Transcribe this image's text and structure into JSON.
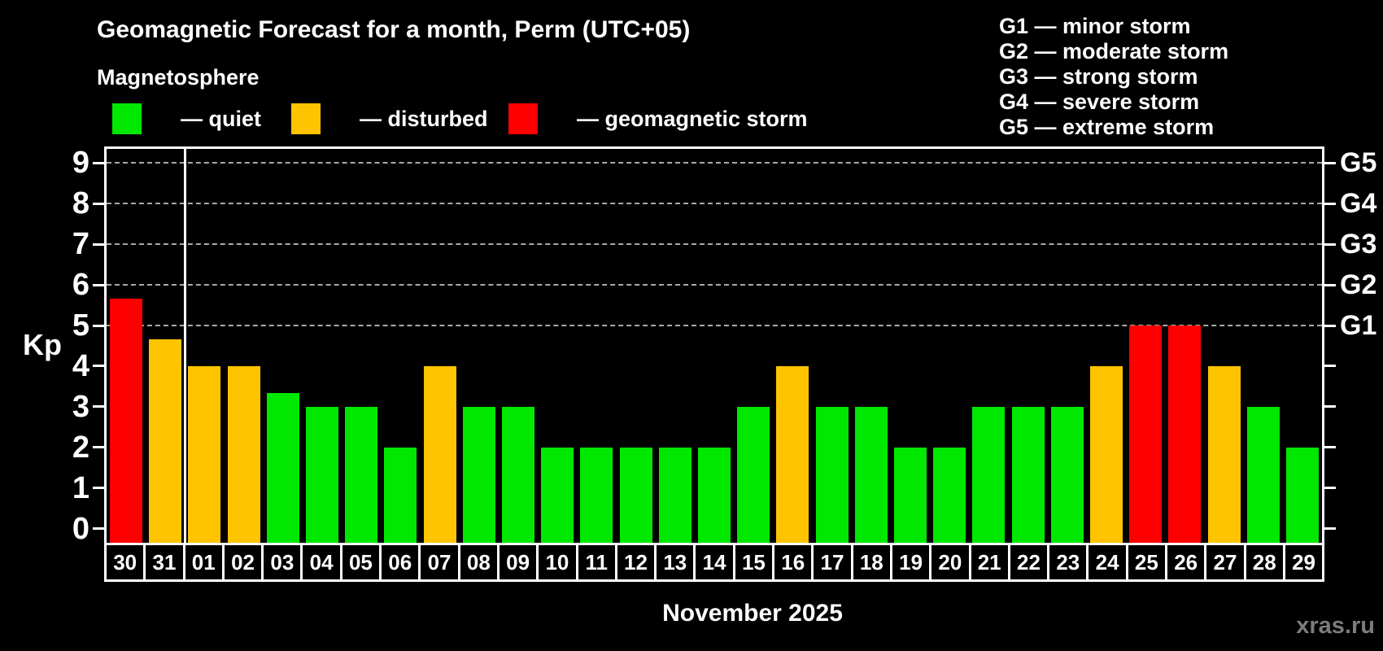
{
  "header": {
    "title": "Geomagnetic Forecast for a month, Perm (UTC+05)",
    "subtitle": "Magnetosphere"
  },
  "legend": {
    "items": [
      {
        "key": "quiet",
        "label": "— quiet",
        "color": "#00e800"
      },
      {
        "key": "disturbed",
        "label": "— disturbed",
        "color": "#ffc400"
      },
      {
        "key": "storm",
        "label": "— geomagnetic storm",
        "color": "#fe0000"
      }
    ]
  },
  "storm_scale": {
    "items": [
      "G1 — minor storm",
      "G2 — moderate storm",
      "G3 — strong storm",
      "G4 — severe storm",
      "G5 — extreme storm"
    ]
  },
  "chart_data": {
    "type": "bar",
    "title": "Geomagnetic Forecast for a month, Perm (UTC+05)",
    "ylabel": "Kp",
    "xlabel": "November 2025",
    "categories": [
      "30",
      "31",
      "01",
      "02",
      "03",
      "04",
      "05",
      "06",
      "07",
      "08",
      "09",
      "10",
      "11",
      "12",
      "13",
      "14",
      "15",
      "16",
      "17",
      "18",
      "19",
      "20",
      "21",
      "22",
      "23",
      "24",
      "25",
      "26",
      "27",
      "28",
      "29"
    ],
    "values": [
      5.67,
      4.67,
      4,
      4,
      3.33,
      3,
      3,
      2,
      4,
      3,
      3,
      2,
      2,
      2,
      2,
      2,
      3,
      4,
      3,
      3,
      2,
      2,
      3,
      3,
      3,
      4,
      5,
      5,
      4,
      3,
      2
    ],
    "statuses": [
      "storm",
      "disturbed",
      "disturbed",
      "disturbed",
      "quiet",
      "quiet",
      "quiet",
      "quiet",
      "disturbed",
      "quiet",
      "quiet",
      "quiet",
      "quiet",
      "quiet",
      "quiet",
      "quiet",
      "quiet",
      "disturbed",
      "quiet",
      "quiet",
      "quiet",
      "quiet",
      "quiet",
      "quiet",
      "quiet",
      "disturbed",
      "storm",
      "storm",
      "disturbed",
      "quiet",
      "quiet"
    ],
    "yticks": [
      0,
      1,
      2,
      3,
      4,
      5,
      6,
      7,
      8,
      9
    ],
    "ylim": [
      -0.35,
      9.35
    ],
    "grid_levels": [
      5,
      6,
      7,
      8,
      9
    ],
    "right_axis": [
      {
        "kp": 5,
        "label": "G1"
      },
      {
        "kp": 6,
        "label": "G2"
      },
      {
        "kp": 7,
        "label": "G3"
      },
      {
        "kp": 8,
        "label": "G4"
      },
      {
        "kp": 9,
        "label": "G5"
      }
    ],
    "month_separator_after": "31",
    "legend_position": "top",
    "grid": "horizontal dashed at Kp 5-9"
  },
  "footer": {
    "month_label": "November 2025",
    "watermark": "xras.ru"
  },
  "colors": {
    "background": "#000000",
    "quiet": "#00e800",
    "disturbed": "#ffc400",
    "storm": "#fe0000",
    "axis": "#ffffff",
    "grid": "#a9a9a9",
    "watermark": "#7c7c7c"
  }
}
